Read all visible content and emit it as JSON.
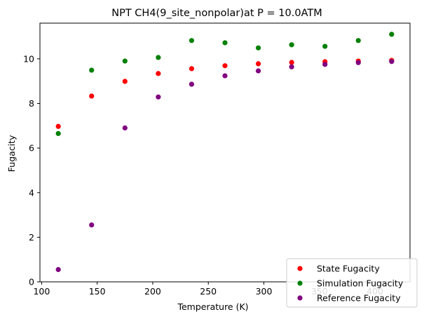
{
  "chart_data": {
    "type": "scatter",
    "title": "NPT CH4(9_site_nonpolar)at P = 10.0ATM",
    "xlabel": "Temperature (K)",
    "ylabel": "Fugacity",
    "xlim": [
      98.5,
      431.5
    ],
    "ylim": [
      0,
      11.6
    ],
    "xticks": [
      100,
      150,
      200,
      250,
      300,
      350,
      400
    ],
    "yticks": [
      0,
      2,
      4,
      6,
      8,
      10
    ],
    "grid": false,
    "legend_position": "lower right",
    "series": [
      {
        "name": "State Fugacity",
        "color": "#ff0000",
        "x": [
          115,
          145,
          175,
          205,
          235,
          265,
          295,
          325,
          355,
          385,
          415
        ],
        "y": [
          6.97,
          8.33,
          8.99,
          9.34,
          9.56,
          9.69,
          9.78,
          9.84,
          9.87,
          9.9,
          9.93
        ]
      },
      {
        "name": "Simulation Fugacity",
        "color": "#008000",
        "x": [
          115,
          145,
          175,
          205,
          235,
          265,
          295,
          325,
          355,
          385,
          415
        ],
        "y": [
          6.65,
          9.49,
          9.9,
          10.06,
          10.82,
          10.72,
          10.49,
          10.63,
          10.56,
          10.82,
          11.1
        ]
      },
      {
        "name": "Reference Fugacity",
        "color": "#800080",
        "x": [
          115,
          145,
          175,
          205,
          235,
          265,
          295,
          325,
          355,
          385,
          415
        ],
        "y": [
          0.55,
          2.55,
          6.9,
          8.29,
          8.86,
          9.24,
          9.46,
          9.64,
          9.75,
          9.83,
          9.88
        ]
      }
    ]
  }
}
